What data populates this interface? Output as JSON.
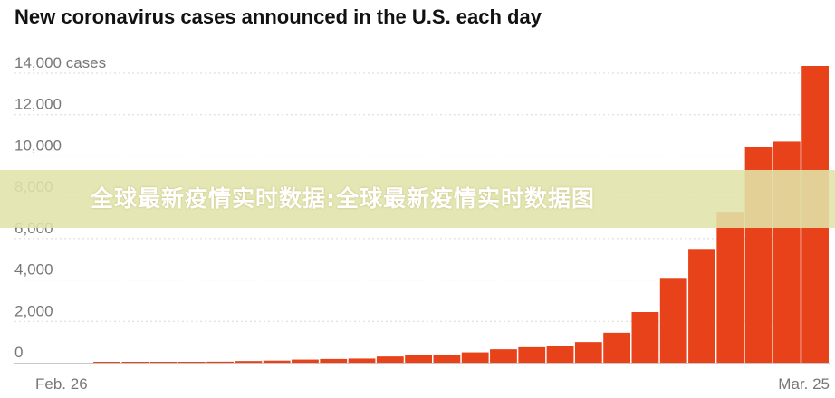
{
  "title": "New coronavirus cases announced in the U.S. each day",
  "watermark": "全球最新疫情实时数据:全球最新疫情实时数据图",
  "colors": {
    "bar": "#e8421b",
    "grid": "#d8d8d8",
    "text": "#777777"
  },
  "chart_data": {
    "type": "bar",
    "title": "New coronavirus cases announced in the U.S. each day",
    "y_ticks": [
      {
        "value": 14000,
        "label": "14,000 cases"
      },
      {
        "value": 12000,
        "label": "12,000"
      },
      {
        "value": 10000,
        "label": "10,000"
      },
      {
        "value": 8000,
        "label": "8,000"
      },
      {
        "value": 6000,
        "label": "6,000"
      },
      {
        "value": 4000,
        "label": "4,000"
      },
      {
        "value": 2000,
        "label": "2,000"
      },
      {
        "value": 0,
        "label": "0"
      }
    ],
    "ylim": [
      0,
      14000
    ],
    "x_labels": [
      "Feb. 26",
      "Mar. 25"
    ],
    "x_range": [
      "Feb. 26",
      "Mar. 25"
    ],
    "values": [
      0,
      0,
      10,
      20,
      30,
      40,
      50,
      80,
      100,
      150,
      180,
      200,
      300,
      350,
      350,
      500,
      650,
      750,
      800,
      1000,
      1450,
      2450,
      4100,
      5500,
      7300,
      10450,
      10700,
      14350
    ],
    "grid": true
  }
}
